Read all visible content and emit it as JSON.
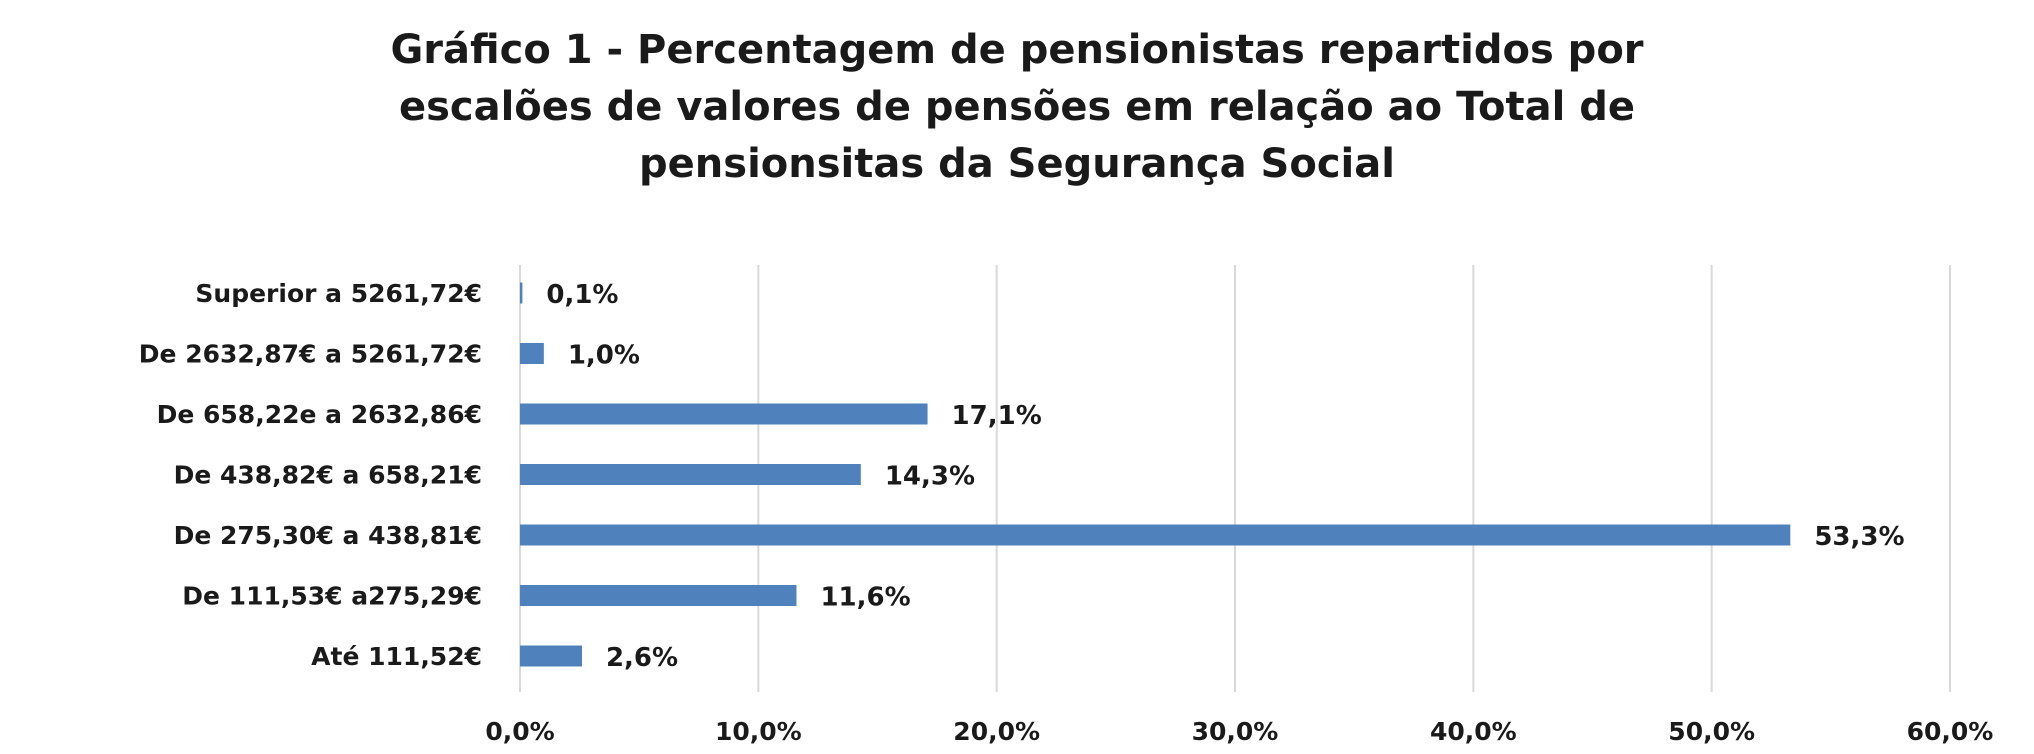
{
  "chart_data": {
    "type": "bar",
    "orientation": "horizontal",
    "title_lines": [
      "Gráfico 1 - Percentagem de pensionistas repartidos por",
      "escalões de valores de pensões em relação ao Total de",
      "pensionsitas da Segurança Social"
    ],
    "categories": [
      "Superior a 5261,72€",
      "De 2632,87€ a 5261,72€",
      "De 658,22e a 2632,86€",
      "De 438,82€ a 658,21€",
      "De 275,30€ a 438,81€",
      "De 111,53€ a275,29€",
      "Até 111,52€"
    ],
    "values": [
      0.1,
      1.0,
      17.1,
      14.3,
      53.3,
      11.6,
      2.6
    ],
    "data_labels": [
      "0,1%",
      "1,0%",
      "17,1%",
      "14,3%",
      "53,3%",
      "11,6%",
      "2,6%"
    ],
    "xlim": [
      0,
      60
    ],
    "x_ticks": [
      0,
      10,
      20,
      30,
      40,
      50,
      60
    ],
    "x_tick_labels": [
      "0,0%",
      "10,0%",
      "20,0%",
      "30,0%",
      "40,0%",
      "50,0%",
      "60,0%"
    ],
    "grid": "vertical",
    "legend": "none",
    "colors": {
      "bar": "#4F81BD",
      "grid": "#D9D9D9",
      "text": "#1a1a1a"
    }
  }
}
